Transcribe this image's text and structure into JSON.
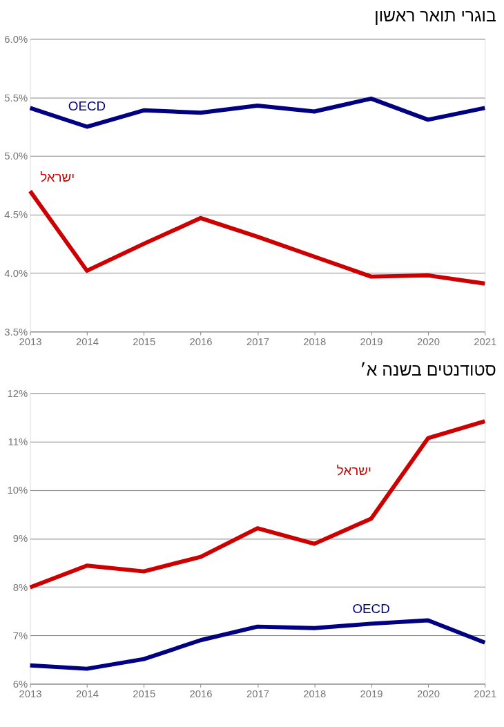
{
  "chart_data": [
    {
      "type": "line",
      "title": "בוגרי תואר ראשון",
      "x": [
        2013,
        2014,
        2015,
        2016,
        2017,
        2018,
        2019,
        2020,
        2021
      ],
      "series": [
        {
          "name": "OECD",
          "color": "#000080",
          "values": [
            5.41,
            5.25,
            5.39,
            5.37,
            5.43,
            5.38,
            5.49,
            5.31,
            5.41
          ]
        },
        {
          "name": "ישראל",
          "color": "#cc0000",
          "values": [
            4.7,
            4.02,
            4.25,
            4.47,
            4.31,
            4.14,
            3.97,
            3.98,
            3.91
          ]
        }
      ],
      "xlim": [
        2013,
        2021
      ],
      "xticks": [
        2013,
        2014,
        2015,
        2016,
        2017,
        2018,
        2019,
        2020,
        2021
      ],
      "ylim": [
        3.5,
        6.0
      ],
      "yticks": [
        {
          "value": 3.5,
          "label": "3.5%"
        },
        {
          "value": 4.0,
          "label": "4.0%"
        },
        {
          "value": 4.5,
          "label": "4.5%"
        },
        {
          "value": 5.0,
          "label": "5.0%"
        },
        {
          "value": 5.5,
          "label": "5.5%"
        },
        {
          "value": 6.0,
          "label": "6.0%"
        }
      ],
      "grid": "y",
      "legend": false,
      "marker": "none",
      "line_style": "solid"
    },
    {
      "type": "line",
      "title": "סטודנטים בשנה א׳",
      "x": [
        2013,
        2014,
        2015,
        2016,
        2017,
        2018,
        2019,
        2020,
        2021
      ],
      "series": [
        {
          "name": "ישראל",
          "color": "#cc0000",
          "values": [
            7.99,
            8.44,
            8.32,
            8.62,
            9.21,
            8.89,
            9.41,
            11.07,
            11.42
          ]
        },
        {
          "name": "OECD",
          "color": "#000080",
          "values": [
            6.38,
            6.31,
            6.51,
            6.9,
            7.18,
            7.15,
            7.24,
            7.31,
            6.85
          ]
        }
      ],
      "xlim": [
        2013,
        2021
      ],
      "xticks": [
        2013,
        2014,
        2015,
        2016,
        2017,
        2018,
        2019,
        2020,
        2021
      ],
      "ylim": [
        6,
        12
      ],
      "yticks": [
        {
          "value": 6,
          "label": "6%"
        },
        {
          "value": 7,
          "label": "7%"
        },
        {
          "value": 8,
          "label": "8%"
        },
        {
          "value": 9,
          "label": "9%"
        },
        {
          "value": 10,
          "label": "10%"
        },
        {
          "value": 11,
          "label": "11%"
        },
        {
          "value": 12,
          "label": "12%"
        }
      ],
      "grid": "y",
      "legend": false,
      "marker": "none",
      "line_style": "solid"
    }
  ]
}
